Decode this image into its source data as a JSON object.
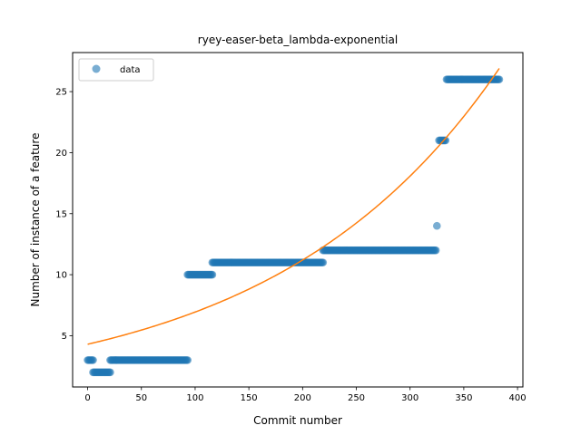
{
  "chart_data": {
    "type": "scatter",
    "title": "ryey-easer-beta_lambda-exponential",
    "xlabel": "Commit number",
    "ylabel": "Number of instance of a feature",
    "xlim": [
      -14,
      405
    ],
    "ylim": [
      0.8,
      28.2
    ],
    "xticks": [
      0,
      50,
      100,
      150,
      200,
      250,
      300,
      350,
      400
    ],
    "yticks": [
      5,
      10,
      15,
      20,
      25
    ],
    "grid": false,
    "legend": {
      "position": "top-left",
      "entries": [
        "data"
      ]
    },
    "colors": {
      "data": "#1f77b4",
      "fit": "#ff7f0e"
    },
    "series": [
      {
        "name": "data",
        "kind": "scatter",
        "segments": [
          {
            "x_start": 0,
            "x_end": 5,
            "y": 3
          },
          {
            "x_start": 5,
            "x_end": 21,
            "y": 2
          },
          {
            "x_start": 21,
            "x_end": 93,
            "y": 3
          },
          {
            "x_start": 93,
            "x_end": 116,
            "y": 10
          },
          {
            "x_start": 116,
            "x_end": 219,
            "y": 11
          },
          {
            "x_start": 219,
            "x_end": 324,
            "y": 12
          },
          {
            "x_start": 325,
            "x_end": 325,
            "y": 14
          },
          {
            "x_start": 327,
            "x_end": 333,
            "y": 21
          },
          {
            "x_start": 334,
            "x_end": 383,
            "y": 26
          }
        ]
      },
      {
        "name": "fit",
        "kind": "line",
        "function": "exponential",
        "x_range": [
          0,
          383
        ],
        "y_start": 4.3,
        "y_end": 26.9
      }
    ]
  }
}
